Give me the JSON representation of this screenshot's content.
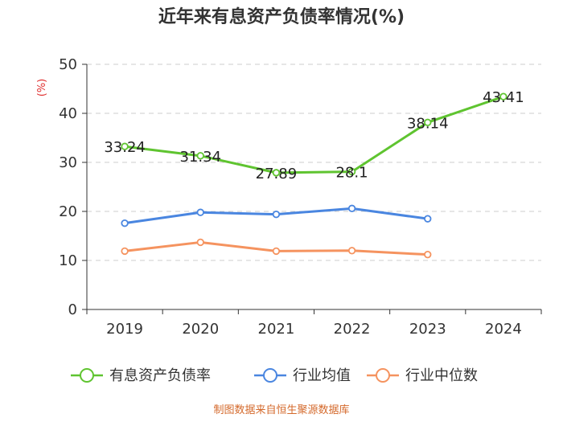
{
  "chart_data": {
    "type": "line",
    "title": "近年来有息资产负债率情况(%)",
    "ylabel": "(%)",
    "categories": [
      "2019",
      "2020",
      "2021",
      "2022",
      "2023",
      "2024"
    ],
    "ylim": [
      0,
      50
    ],
    "yticks": [
      "0",
      "10",
      "20",
      "30",
      "40",
      "50"
    ],
    "grid": true,
    "legend_position": "bottom",
    "series": [
      {
        "name": "有息资产负债率",
        "color": "#5fc430",
        "values": [
          33.24,
          31.34,
          27.89,
          28.1,
          38.14,
          43.41
        ],
        "labels": [
          "33.24",
          "31.34",
          "27.89",
          "28.1",
          "38.14",
          "43.41"
        ]
      },
      {
        "name": "行业均值",
        "color": "#4a86e0",
        "values": [
          17.6,
          19.8,
          19.4,
          20.6,
          18.5,
          null
        ]
      },
      {
        "name": "行业中位数",
        "color": "#f5935f",
        "values": [
          11.9,
          13.7,
          11.9,
          12.0,
          11.2,
          null
        ]
      }
    ]
  },
  "colors": {
    "unit_label": "#e03030",
    "footer": "#d4692b",
    "grid": "#cccccc",
    "axis": "#333333"
  },
  "footer": "制图数据来自恒生聚源数据库"
}
